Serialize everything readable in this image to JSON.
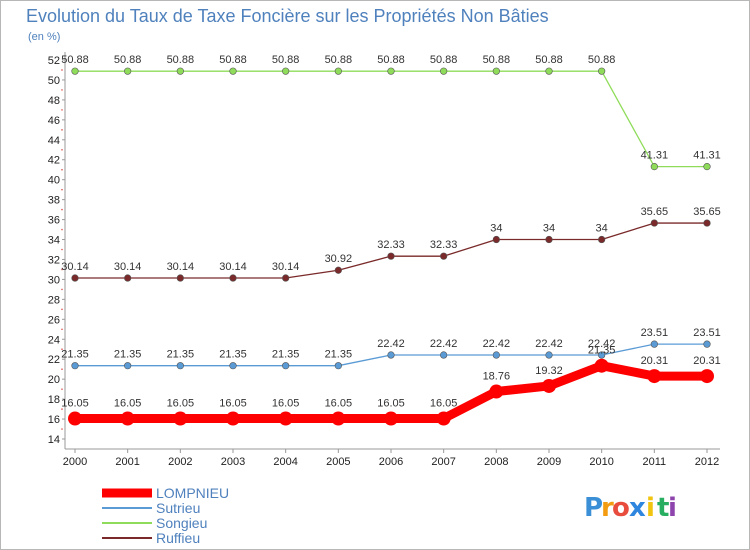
{
  "chart_data": {
    "type": "line",
    "title": "Evolution du Taux de Taxe Foncière sur les Propriétés Non Bâties",
    "ylabel": "(en %)",
    "xlabel": "",
    "categories": [
      "2000",
      "2001",
      "2002",
      "2003",
      "2004",
      "2005",
      "2006",
      "2007",
      "2008",
      "2009",
      "2010",
      "2011",
      "2012"
    ],
    "ylim": [
      14,
      52
    ],
    "ytick_step": 2,
    "grid": false,
    "legend_position": "bottom-left",
    "series": [
      {
        "name": "LOMPNIEU",
        "color": "#ff0000",
        "emphasis": true,
        "values": [
          16.05,
          16.05,
          16.05,
          16.05,
          16.05,
          16.05,
          16.05,
          16.05,
          18.76,
          19.32,
          21.35,
          20.31,
          20.31
        ],
        "labels": [
          "16.05",
          "16.05",
          "16.05",
          "16.05",
          "16.05",
          "16.05",
          "16.05",
          "16.05",
          "18.76",
          "19.32",
          "21.35",
          "20.31",
          "20.31"
        ]
      },
      {
        "name": "Sutrieu",
        "color": "#5b9bd5",
        "emphasis": false,
        "values": [
          21.35,
          21.35,
          21.35,
          21.35,
          21.35,
          21.35,
          22.42,
          22.42,
          22.42,
          22.42,
          22.42,
          23.51,
          23.51
        ],
        "labels": [
          "21.35",
          "21.35",
          "21.35",
          "21.35",
          "21.35",
          "21.35",
          "22.42",
          "22.42",
          "22.42",
          "22.42",
          "22.42",
          "23.51",
          "23.51"
        ]
      },
      {
        "name": "Songieu",
        "color": "#8fdc5a",
        "emphasis": false,
        "values": [
          50.88,
          50.88,
          50.88,
          50.88,
          50.88,
          50.88,
          50.88,
          50.88,
          50.88,
          50.88,
          50.88,
          41.31,
          41.31
        ],
        "labels": [
          "50.88",
          "50.88",
          "50.88",
          "50.88",
          "50.88",
          "50.88",
          "50.88",
          "50.88",
          "50.88",
          "50.88",
          "50.88",
          "41.31",
          "41.31"
        ]
      },
      {
        "name": "Ruffieu",
        "color": "#7a2a2a",
        "emphasis": false,
        "values": [
          30.14,
          30.14,
          30.14,
          30.14,
          30.14,
          30.92,
          32.33,
          32.33,
          34,
          34,
          34,
          35.65,
          35.65
        ],
        "labels": [
          "30.14",
          "30.14",
          "30.14",
          "30.14",
          "30.14",
          "30.92",
          "32.33",
          "32.33",
          "34",
          "34",
          "34",
          "35.65",
          "35.65"
        ]
      }
    ]
  },
  "brand": {
    "letters": [
      "P",
      "r",
      "o",
      "x",
      "i",
      "t",
      "i"
    ],
    "colors": [
      "#3a8fd6",
      "#f39c12",
      "#e84c3d",
      "#2e86de",
      "#f1c40f",
      "#27ae60",
      "#8e44ad"
    ]
  }
}
